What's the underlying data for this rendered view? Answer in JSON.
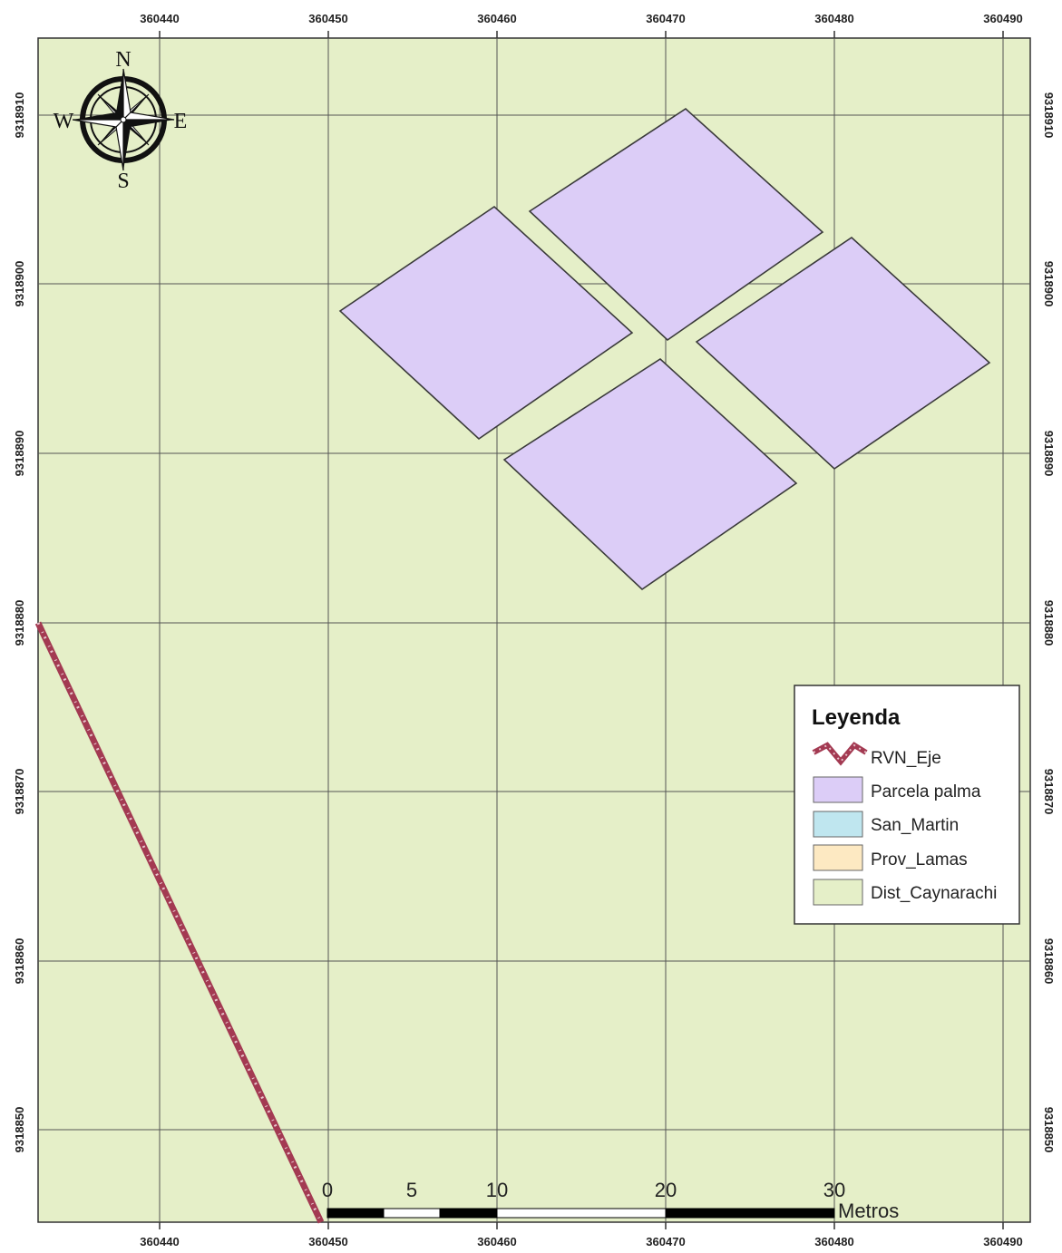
{
  "map": {
    "background_color": "#e5efc8",
    "grid_color": "#555555",
    "x_ticks": [
      "360440",
      "360450",
      "360460",
      "360470",
      "360480",
      "360490"
    ],
    "y_ticks": [
      "9318910",
      "9318900",
      "9318890",
      "9318880",
      "9318870",
      "9318860",
      "9318850"
    ],
    "parcels": [
      {
        "name": "parcel-west",
        "fill": "#dccdf7"
      },
      {
        "name": "parcel-north",
        "fill": "#dccdf7"
      },
      {
        "name": "parcel-east",
        "fill": "#dccdf7"
      },
      {
        "name": "parcel-south",
        "fill": "#dccdf7"
      }
    ],
    "road": {
      "name": "RVN_Eje",
      "color": "#a33a52"
    }
  },
  "compass": {
    "north": "N",
    "south": "S",
    "east": "E",
    "west": "W",
    "icon": "compass-rose-icon"
  },
  "legend": {
    "title": "Leyenda",
    "items": [
      {
        "label": "RVN_Eje",
        "color": "#a33a52",
        "kind": "line"
      },
      {
        "label": "Parcela palma",
        "color": "#dccdf7",
        "kind": "fill"
      },
      {
        "label": "San_Martin",
        "color": "#bfe6ef",
        "kind": "fill"
      },
      {
        "label": "Prov_Lamas",
        "color": "#fde9c2",
        "kind": "fill"
      },
      {
        "label": "Dist_Caynarachi",
        "color": "#e5efc8",
        "kind": "fill"
      }
    ]
  },
  "scale_bar": {
    "labels": [
      "0",
      "5",
      "10",
      "20",
      "30"
    ],
    "unit": "Metros"
  }
}
